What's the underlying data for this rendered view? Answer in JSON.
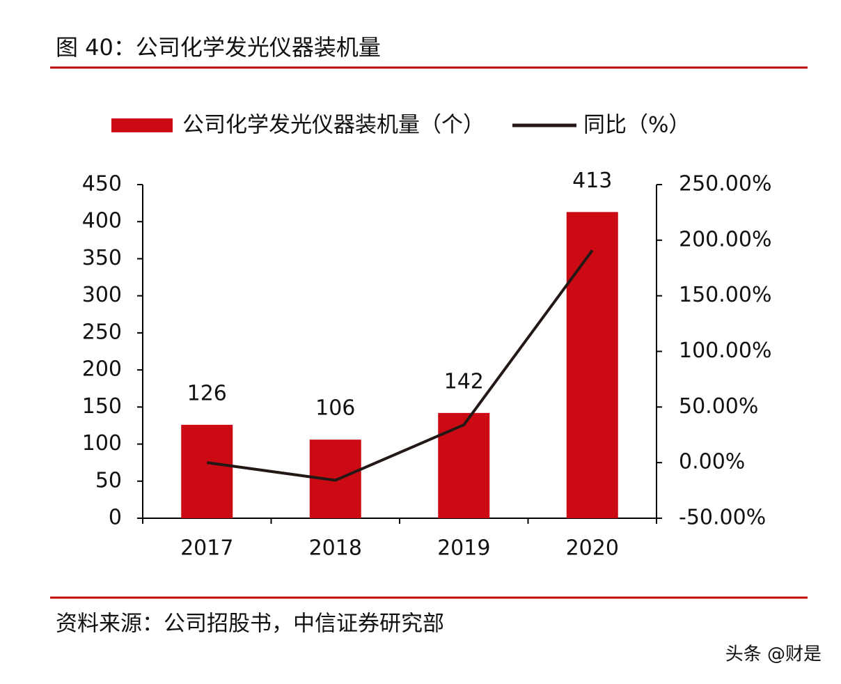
{
  "chart_data": {
    "type": "bar-line",
    "title": "图 40：公司化学发光仪器装机量",
    "categories": [
      "2017",
      "2018",
      "2019",
      "2020"
    ],
    "series": [
      {
        "name": "公司化学发光仪器装机量（个）",
        "type": "bar",
        "color": "#cc0a14",
        "values": [
          126,
          106,
          142,
          413
        ]
      },
      {
        "name": "同比（%）",
        "type": "line",
        "axis": "y2",
        "color": "#231815",
        "values": [
          0,
          -15.87,
          33.96,
          190.85
        ]
      }
    ],
    "ylim": [
      0,
      450
    ],
    "yticks": [
      0,
      50,
      100,
      150,
      200,
      250,
      300,
      350,
      400,
      450
    ],
    "y2lim": [
      -50,
      250
    ],
    "y2ticks": [
      {
        "value": -50,
        "label": "-50.00%"
      },
      {
        "value": 0,
        "label": "0.00%"
      },
      {
        "value": 50,
        "label": "50.00%"
      },
      {
        "value": 100,
        "label": "100.00%"
      },
      {
        "value": 150,
        "label": "150.00%"
      },
      {
        "value": 200,
        "label": "200.00%"
      },
      {
        "value": 250,
        "label": "250.00%"
      }
    ],
    "source": "资料来源：公司招股书，中信证券研究部",
    "watermark": "头条 @财是"
  }
}
